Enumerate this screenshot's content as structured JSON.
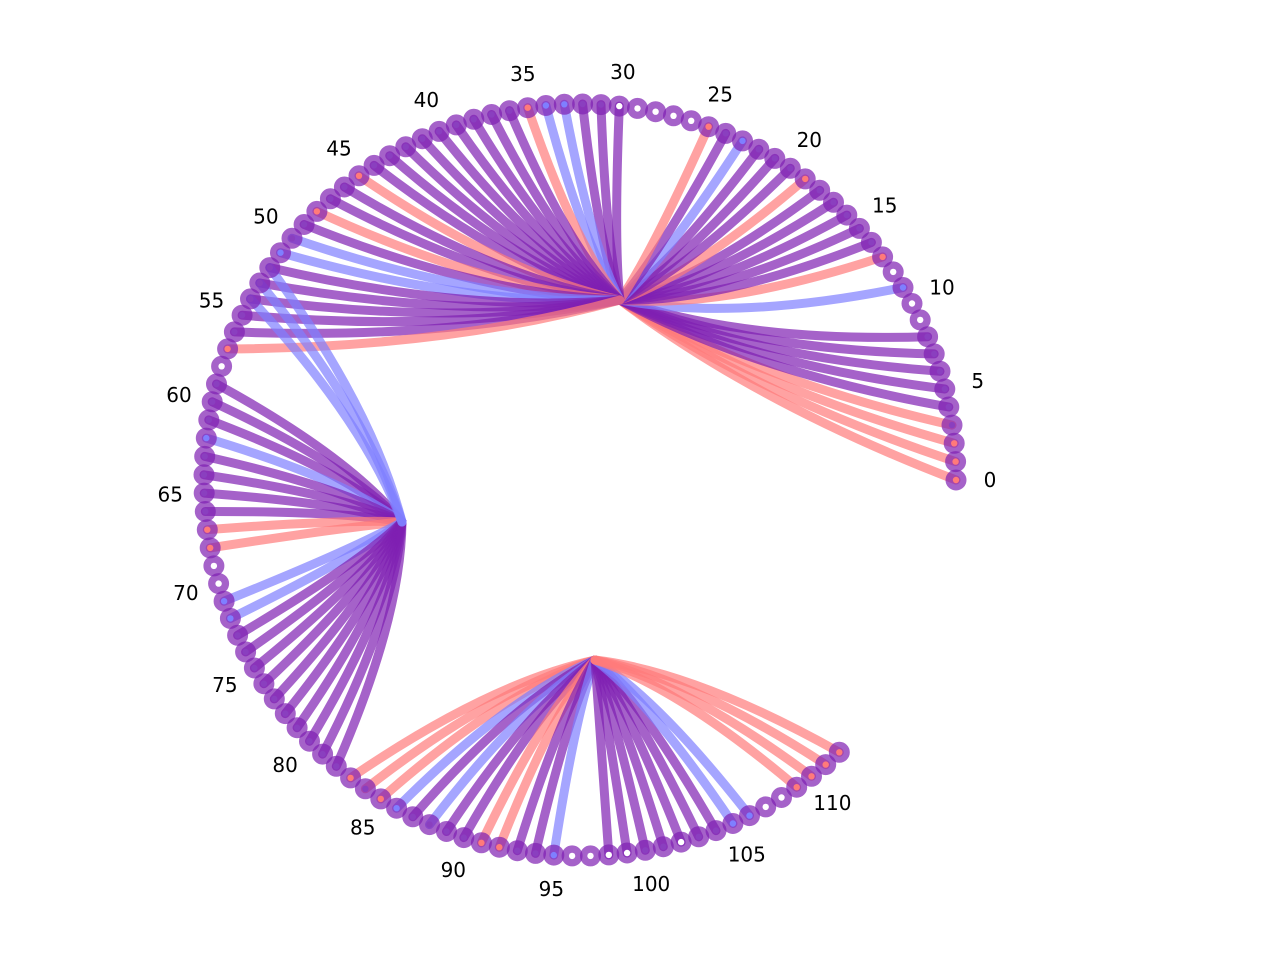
{
  "diagram": {
    "type": "arc-chord",
    "node_count": 113,
    "tick_labels": [
      "0",
      "5",
      "10",
      "15",
      "20",
      "25",
      "30",
      "35",
      "40",
      "45",
      "50",
      "55",
      "60",
      "65",
      "70",
      "75",
      "80",
      "85",
      "90",
      "95",
      "100",
      "105",
      "110"
    ],
    "colors": {
      "red": "#ff7a7a",
      "blue": "#7f7fff",
      "purple": "#7f1fb2",
      "white": "#ffffff"
    },
    "groups": [
      {
        "name": "top",
        "hub": [
          620,
          300
        ],
        "edges": [
          [
            0,
            "red"
          ],
          [
            1,
            "red"
          ],
          [
            2,
            "red"
          ],
          [
            3,
            "red"
          ],
          [
            4,
            "purple"
          ],
          [
            5,
            "purple"
          ],
          [
            6,
            "purple"
          ],
          [
            7,
            "purple"
          ],
          [
            8,
            "purple"
          ],
          [
            11,
            "blue"
          ],
          [
            13,
            "red"
          ],
          [
            14,
            "purple"
          ],
          [
            15,
            "purple"
          ],
          [
            16,
            "purple"
          ],
          [
            17,
            "purple"
          ],
          [
            18,
            "purple"
          ],
          [
            19,
            "red"
          ],
          [
            20,
            "purple"
          ],
          [
            21,
            "purple"
          ],
          [
            22,
            "purple"
          ],
          [
            23,
            "blue"
          ],
          [
            24,
            "purple"
          ],
          [
            25,
            "red"
          ],
          [
            30,
            "purple"
          ],
          [
            31,
            "purple"
          ],
          [
            32,
            "purple"
          ],
          [
            33,
            "blue"
          ],
          [
            34,
            "blue"
          ],
          [
            35,
            "red"
          ],
          [
            36,
            "purple"
          ],
          [
            37,
            "purple"
          ],
          [
            38,
            "purple"
          ],
          [
            39,
            "purple"
          ],
          [
            40,
            "purple"
          ],
          [
            41,
            "purple"
          ],
          [
            42,
            "purple"
          ],
          [
            43,
            "purple"
          ],
          [
            44,
            "purple"
          ],
          [
            45,
            "red"
          ],
          [
            46,
            "purple"
          ],
          [
            47,
            "purple"
          ],
          [
            48,
            "red"
          ],
          [
            49,
            "purple"
          ],
          [
            50,
            "blue"
          ],
          [
            51,
            "blue"
          ],
          [
            52,
            "purple"
          ],
          [
            53,
            "purple"
          ],
          [
            54,
            "purple"
          ],
          [
            55,
            "purple"
          ],
          [
            56,
            "purple"
          ],
          [
            57,
            "red"
          ]
        ]
      },
      {
        "name": "left",
        "hub": [
          402,
          522
        ],
        "edges": [
          [
            59,
            "purple"
          ],
          [
            60,
            "purple"
          ],
          [
            61,
            "purple"
          ],
          [
            62,
            "blue"
          ],
          [
            63,
            "purple"
          ],
          [
            64,
            "purple"
          ],
          [
            65,
            "purple"
          ],
          [
            66,
            "purple"
          ],
          [
            67,
            "red"
          ],
          [
            68,
            "red"
          ],
          [
            71,
            "blue"
          ],
          [
            72,
            "blue"
          ],
          [
            73,
            "purple"
          ],
          [
            74,
            "purple"
          ],
          [
            75,
            "purple"
          ],
          [
            76,
            "purple"
          ],
          [
            77,
            "purple"
          ],
          [
            78,
            "purple"
          ],
          [
            79,
            "purple"
          ],
          [
            80,
            "purple"
          ],
          [
            81,
            "purple"
          ],
          [
            82,
            "purple"
          ],
          [
            52,
            "blue"
          ],
          [
            53,
            "blue"
          ],
          [
            54,
            "blue"
          ]
        ]
      },
      {
        "name": "bottom",
        "hub": [
          595,
          660
        ],
        "edges": [
          [
            83,
            "red"
          ],
          [
            84,
            "red"
          ],
          [
            85,
            "red"
          ],
          [
            86,
            "blue"
          ],
          [
            87,
            "purple"
          ],
          [
            88,
            "blue"
          ],
          [
            89,
            "purple"
          ],
          [
            90,
            "purple"
          ],
          [
            91,
            "red"
          ],
          [
            92,
            "red"
          ],
          [
            93,
            "purple"
          ],
          [
            94,
            "purple"
          ],
          [
            95,
            "blue"
          ],
          [
            98,
            "purple"
          ],
          [
            99,
            "purple"
          ],
          [
            100,
            "purple"
          ],
          [
            101,
            "purple"
          ],
          [
            102,
            "purple"
          ],
          [
            103,
            "purple"
          ],
          [
            104,
            "purple"
          ],
          [
            105,
            "blue"
          ],
          [
            106,
            "blue"
          ],
          [
            109,
            "red"
          ],
          [
            110,
            "red"
          ],
          [
            111,
            "red"
          ],
          [
            112,
            "red"
          ]
        ]
      }
    ],
    "node_colors": {
      "0": "red",
      "1": "red",
      "2": "red",
      "9": "white",
      "10": "white",
      "11": "blue",
      "12": "white",
      "13": "red",
      "19": "red",
      "23": "blue",
      "25": "red",
      "26": "white",
      "27": "white",
      "28": "white",
      "29": "white",
      "30": "white",
      "33": "blue",
      "34": "blue",
      "35": "red",
      "45": "red",
      "48": "red",
      "51": "blue",
      "57": "red",
      "58": "white",
      "62": "blue",
      "67": "red",
      "68": "red",
      "69": "white",
      "70": "white",
      "71": "blue",
      "72": "blue",
      "83": "red",
      "85": "red",
      "86": "blue",
      "91": "red",
      "92": "red",
      "95": "blue",
      "96": "white",
      "97": "white",
      "98": "white",
      "99": "white",
      "102": "white",
      "105": "blue",
      "106": "blue",
      "107": "white",
      "108": "white",
      "109": "red",
      "110": "red",
      "111": "red",
      "112": "red"
    }
  }
}
